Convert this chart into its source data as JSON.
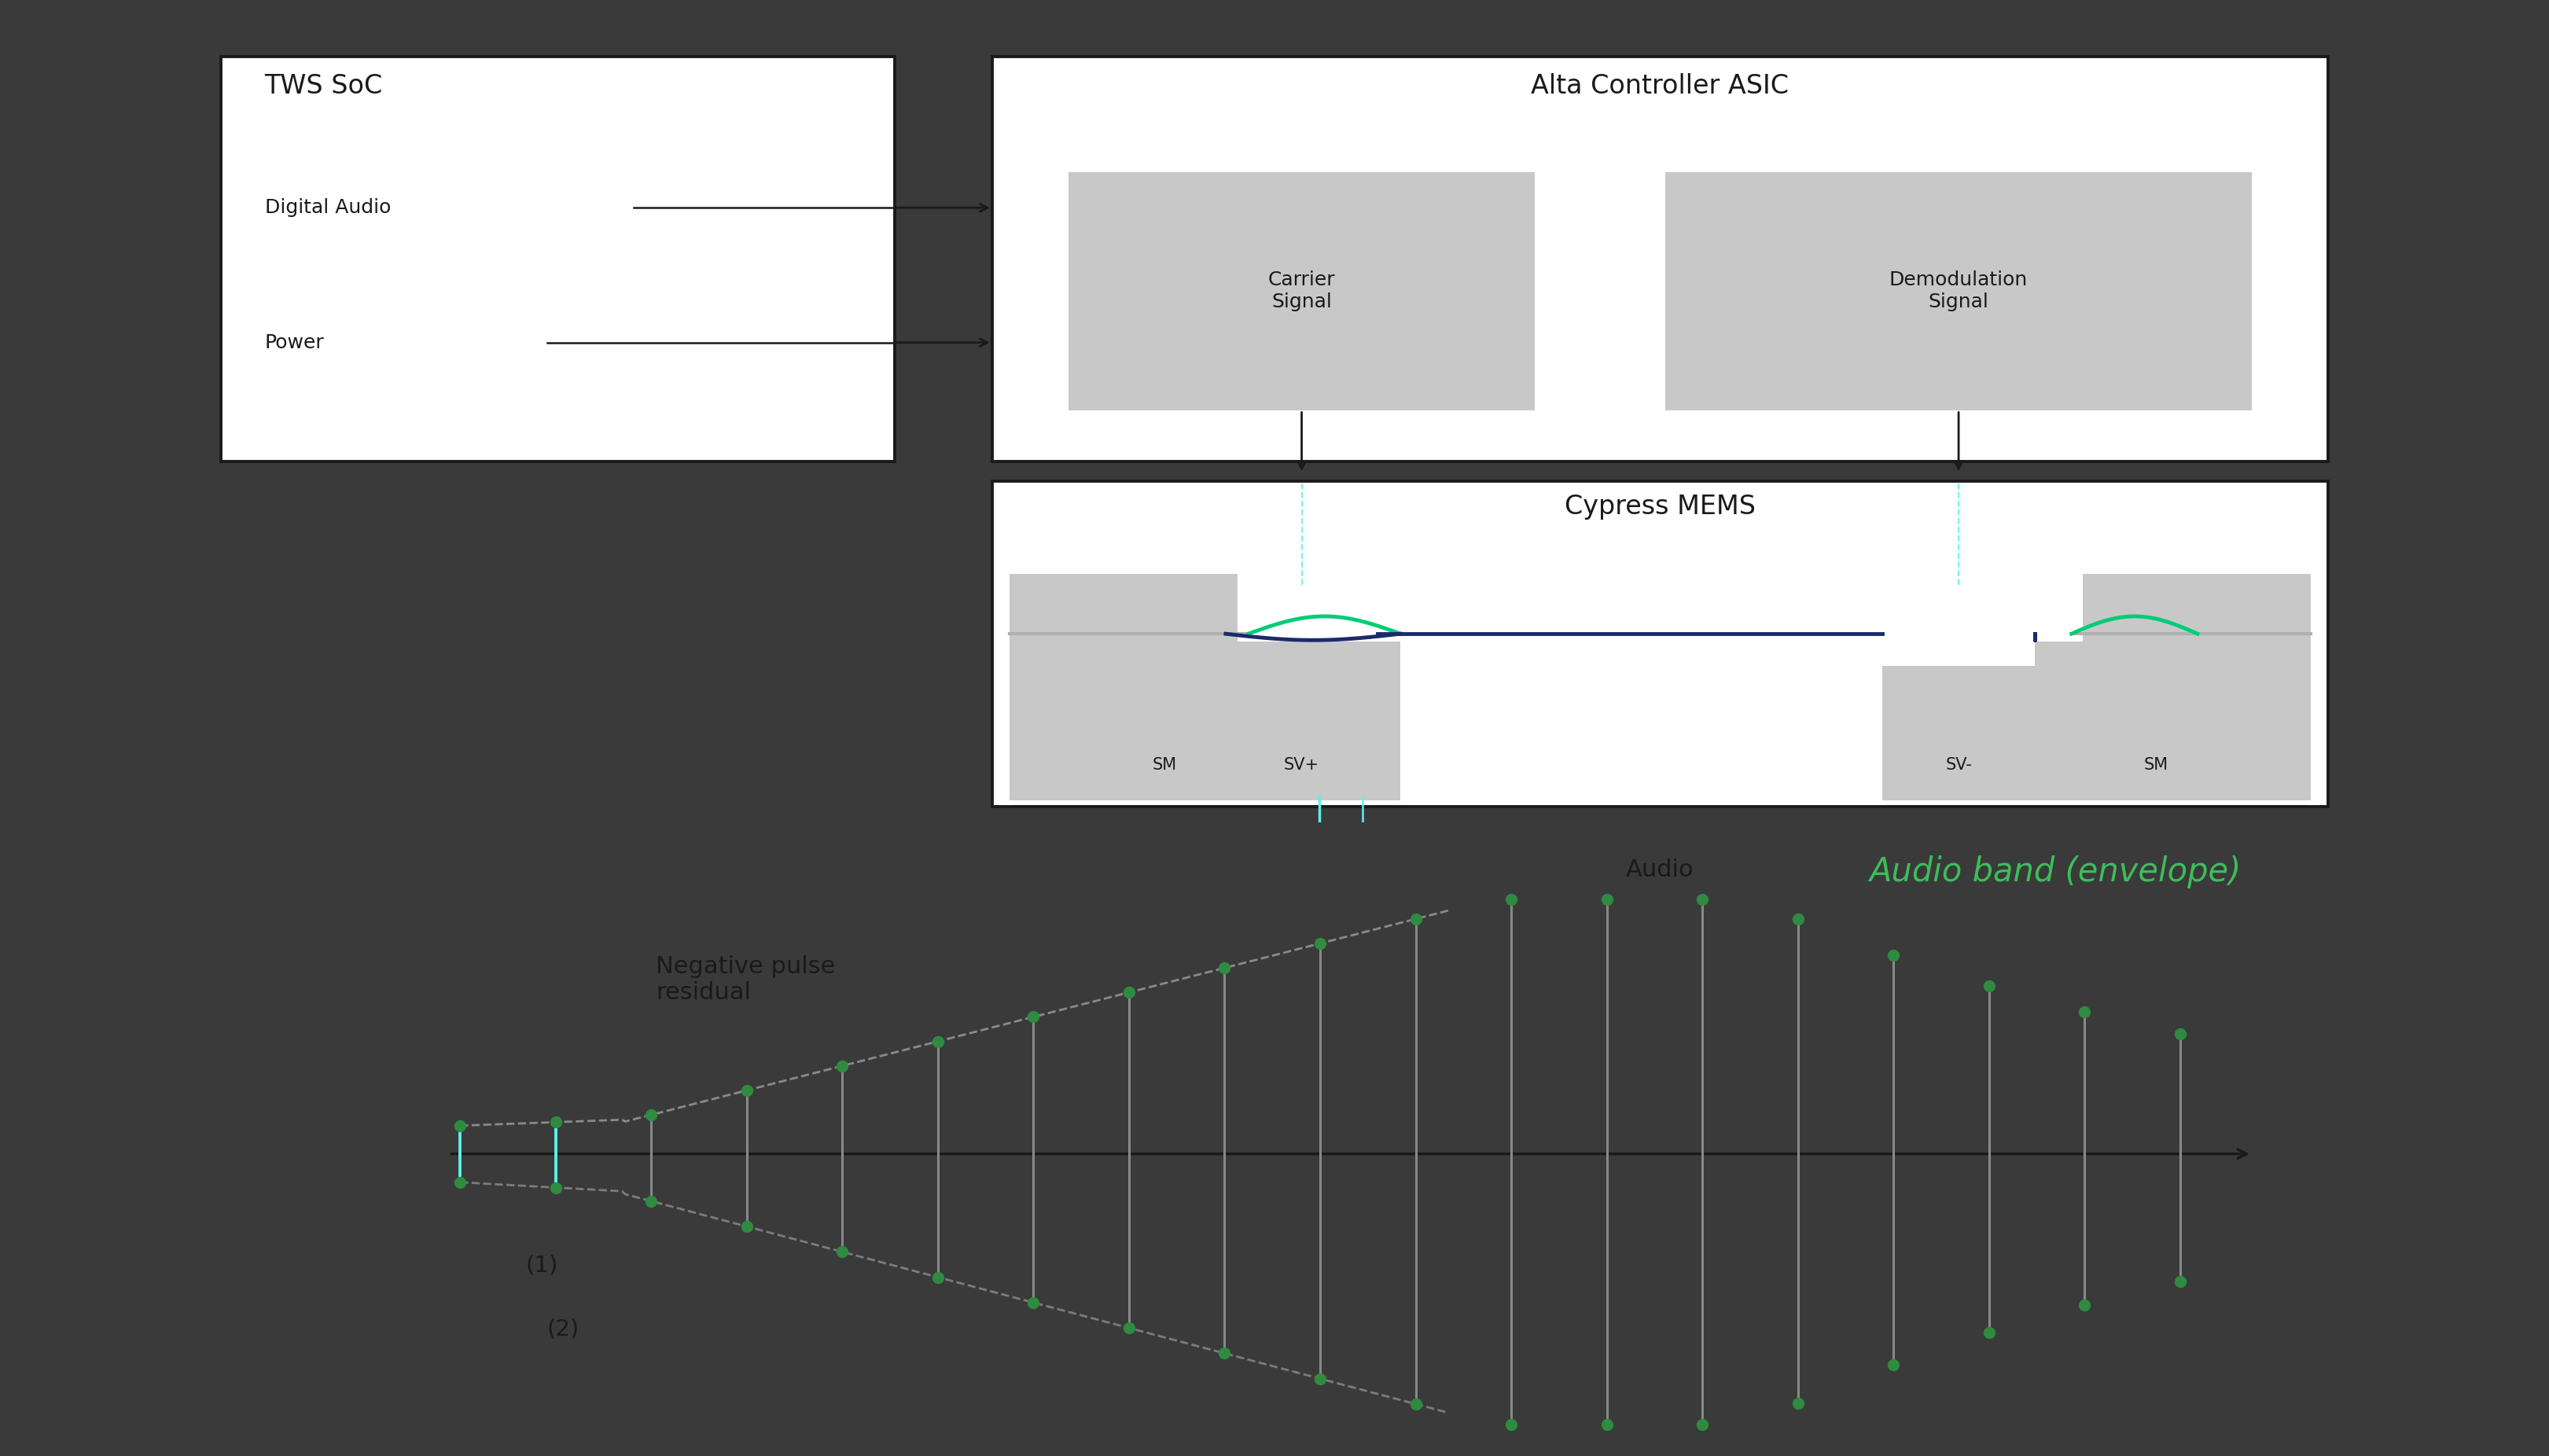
{
  "bg_dark": "#3a3a3a",
  "bg_white": "#ffffff",
  "bg_lightgray": "#c8c8c8",
  "bg_midgray": "#b0b0b0",
  "text_black": "#1a1a1a",
  "text_green": "#3dbd5a",
  "cyan_color": "#5ef0e8",
  "green_dot": "#2e8b40",
  "dark_blue": "#1a2a6c",
  "signal_gray": "#888888",
  "dashed_gray": "#999999",
  "title": "Audio band (envelope)",
  "tws_label": "TWS SoC",
  "alta_label": "Alta Controller ASIC",
  "carrier_label": "Carrier\nSignal",
  "demod_label": "Demodulation\nSignal",
  "cypress_label": "Cypress MEMS",
  "audio_label": "Audio",
  "digital_audio": "Digital Audio",
  "power": "Power",
  "sm_label": "SM",
  "sv_plus": "SV+",
  "sv_minus": "SV-",
  "neg_pulse_label": "Negative pulse\nresidual",
  "label_1": "(1)",
  "label_2": "(2)"
}
